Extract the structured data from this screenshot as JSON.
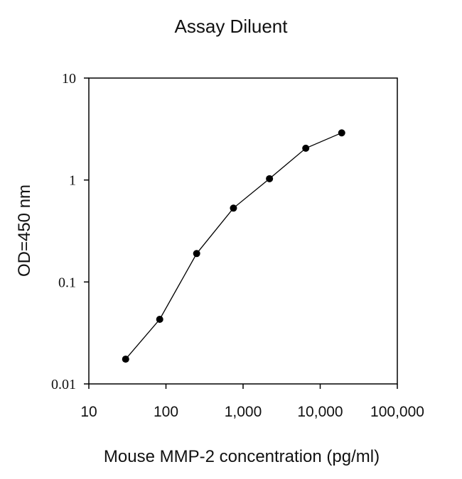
{
  "chart_data": {
    "type": "line",
    "title": "Assay Diluent",
    "xlabel": "Mouse MMP-2 concentration (pg/ml)",
    "ylabel": "OD=450 nm",
    "xscale": "log",
    "yscale": "log",
    "xlim": [
      10,
      100000
    ],
    "ylim": [
      0.01,
      10
    ],
    "xticks": [
      10,
      100,
      1000,
      10000,
      100000
    ],
    "xtick_labels": [
      "10",
      "100",
      "1,000",
      "10,000",
      "100,000"
    ],
    "yticks": [
      0.01,
      0.1,
      1,
      10
    ],
    "ytick_labels": [
      "0.01",
      "0.1",
      "1",
      "10"
    ],
    "grid": false,
    "marker": "filled-circle",
    "line_color": "#000000",
    "series": [
      {
        "x": [
          30,
          83,
          250,
          750,
          2200,
          6500,
          19000
        ],
        "y": [
          0.0175,
          0.043,
          0.19,
          0.53,
          1.03,
          2.05,
          2.9
        ]
      }
    ]
  }
}
